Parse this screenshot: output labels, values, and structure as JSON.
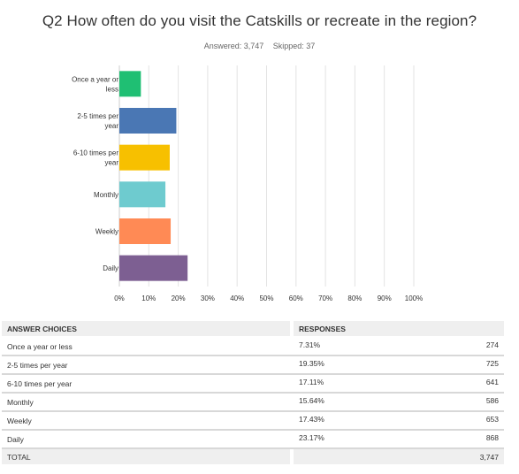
{
  "title": "Q2 How often do you visit the Catskills or recreate in the region?",
  "answered": "Answered: 3,747",
  "skipped": "Skipped: 37",
  "chart_data": {
    "type": "bar",
    "orientation": "horizontal",
    "categories": [
      [
        "Once a year or",
        "less"
      ],
      [
        "2-5 times per",
        "year"
      ],
      [
        "6-10 times per",
        "year"
      ],
      [
        "Monthly"
      ],
      [
        "Weekly"
      ],
      [
        "Daily"
      ]
    ],
    "values": [
      7.31,
      19.35,
      17.11,
      15.64,
      17.43,
      23.17
    ],
    "colors": [
      "#1fbf73",
      "#4a77b4",
      "#f7c000",
      "#6ecbcf",
      "#ff8a55",
      "#7d5f92"
    ],
    "xticks": [
      "0%",
      "10%",
      "20%",
      "30%",
      "40%",
      "50%",
      "60%",
      "70%",
      "80%",
      "90%",
      "100%"
    ],
    "xlim": [
      0,
      100
    ],
    "grid": true,
    "legend": "none"
  },
  "table": {
    "headers": {
      "choices": "ANSWER CHOICES",
      "responses": "RESPONSES"
    },
    "rows": [
      {
        "choice": "Once a year or less",
        "percent": "7.31%",
        "count": "274"
      },
      {
        "choice": "2-5 times per year",
        "percent": "19.35%",
        "count": "725"
      },
      {
        "choice": "6-10 times per year",
        "percent": "17.11%",
        "count": "641"
      },
      {
        "choice": "Monthly",
        "percent": "15.64%",
        "count": "586"
      },
      {
        "choice": "Weekly",
        "percent": "17.43%",
        "count": "653"
      },
      {
        "choice": "Daily",
        "percent": "23.17%",
        "count": "868"
      }
    ],
    "total": {
      "label": "TOTAL",
      "count": "3,747"
    }
  }
}
